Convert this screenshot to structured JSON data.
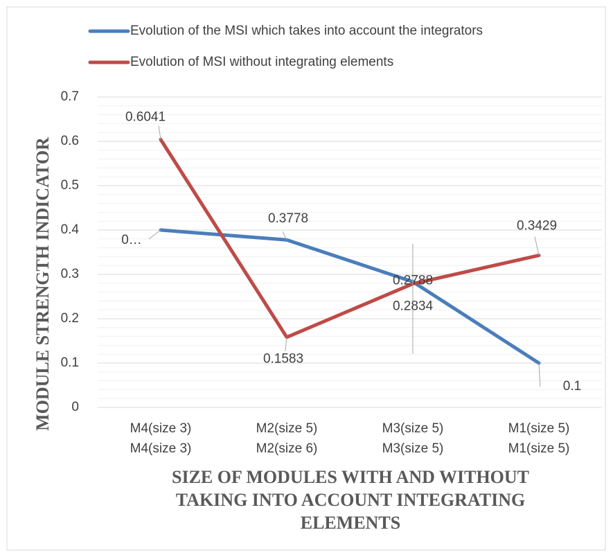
{
  "chart_data": {
    "type": "line",
    "ylabel": "MODULE STRENGTH  INDICATOR",
    "xlabel": "SIZE OF MODULES WITH AND WITHOUT TAKING INTO ACCOUNT INTEGRATING ELEMENTS",
    "categories": [
      [
        "M4(size 3)",
        "M4(size 3)"
      ],
      [
        "M2(size 5)",
        "M2(size 6)"
      ],
      [
        "M3(size 5)",
        "M3(size 5)"
      ],
      [
        "M1(size 5)",
        "M1(size 5)"
      ]
    ],
    "series": [
      {
        "name": "Evolution of the MSI which takes into account the integrators",
        "color": "#4a7ebb",
        "values": [
          0.4,
          0.3778,
          0.2834,
          0.1
        ],
        "value_labels": [
          "0…",
          "0.3778",
          "0.2834",
          "0.1"
        ]
      },
      {
        "name": "Evolution of MSI without integrating elements",
        "color": "#be4b48",
        "values": [
          0.6041,
          0.1583,
          0.2788,
          0.3429
        ],
        "value_labels": [
          "0.6041",
          "0.1583",
          "0.2788",
          "0.3429"
        ]
      }
    ],
    "ylim": [
      0,
      0.7
    ],
    "yticks": [
      0,
      0.1,
      0.2,
      0.3,
      0.4,
      0.5,
      0.6,
      0.7
    ],
    "grid": true,
    "minor_grid": true,
    "legend": "top"
  }
}
